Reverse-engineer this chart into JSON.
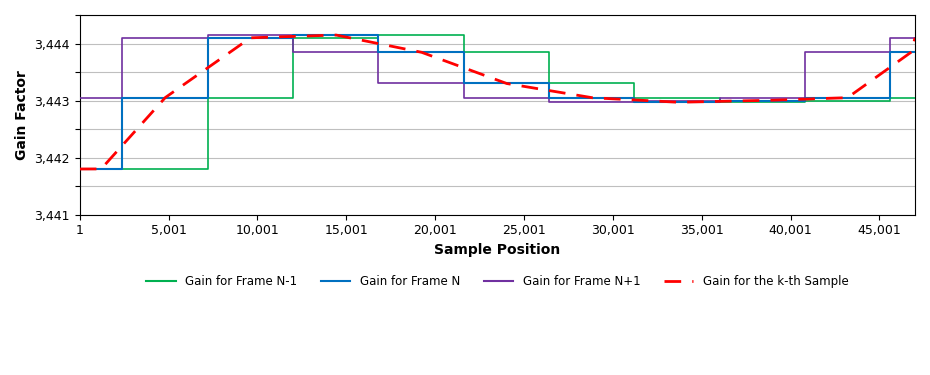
{
  "title": "",
  "xlabel": "Sample Position",
  "ylabel": "Gain Factor",
  "xlim": [
    1,
    47001
  ],
  "ylim": [
    3441.0,
    3444.5
  ],
  "xticks": [
    1,
    5001,
    10001,
    15001,
    20001,
    25001,
    30001,
    35001,
    40001,
    45001
  ],
  "ytick_values": [
    3441.0,
    3441.5,
    3442.0,
    3442.5,
    3443.0,
    3443.5,
    3444.0,
    3444.5
  ],
  "ytick_labels": [
    "3,441",
    "",
    "3,442",
    "",
    "3,443",
    "",
    "3,444",
    ""
  ],
  "colors": {
    "frame_nm1": "#00b050",
    "frame_n": "#0070c0",
    "frame_np1": "#7030a0",
    "kth": "#ff0000"
  },
  "frame_size": 4800,
  "background": "#ffffff",
  "grid_color": "#bfbfbf"
}
